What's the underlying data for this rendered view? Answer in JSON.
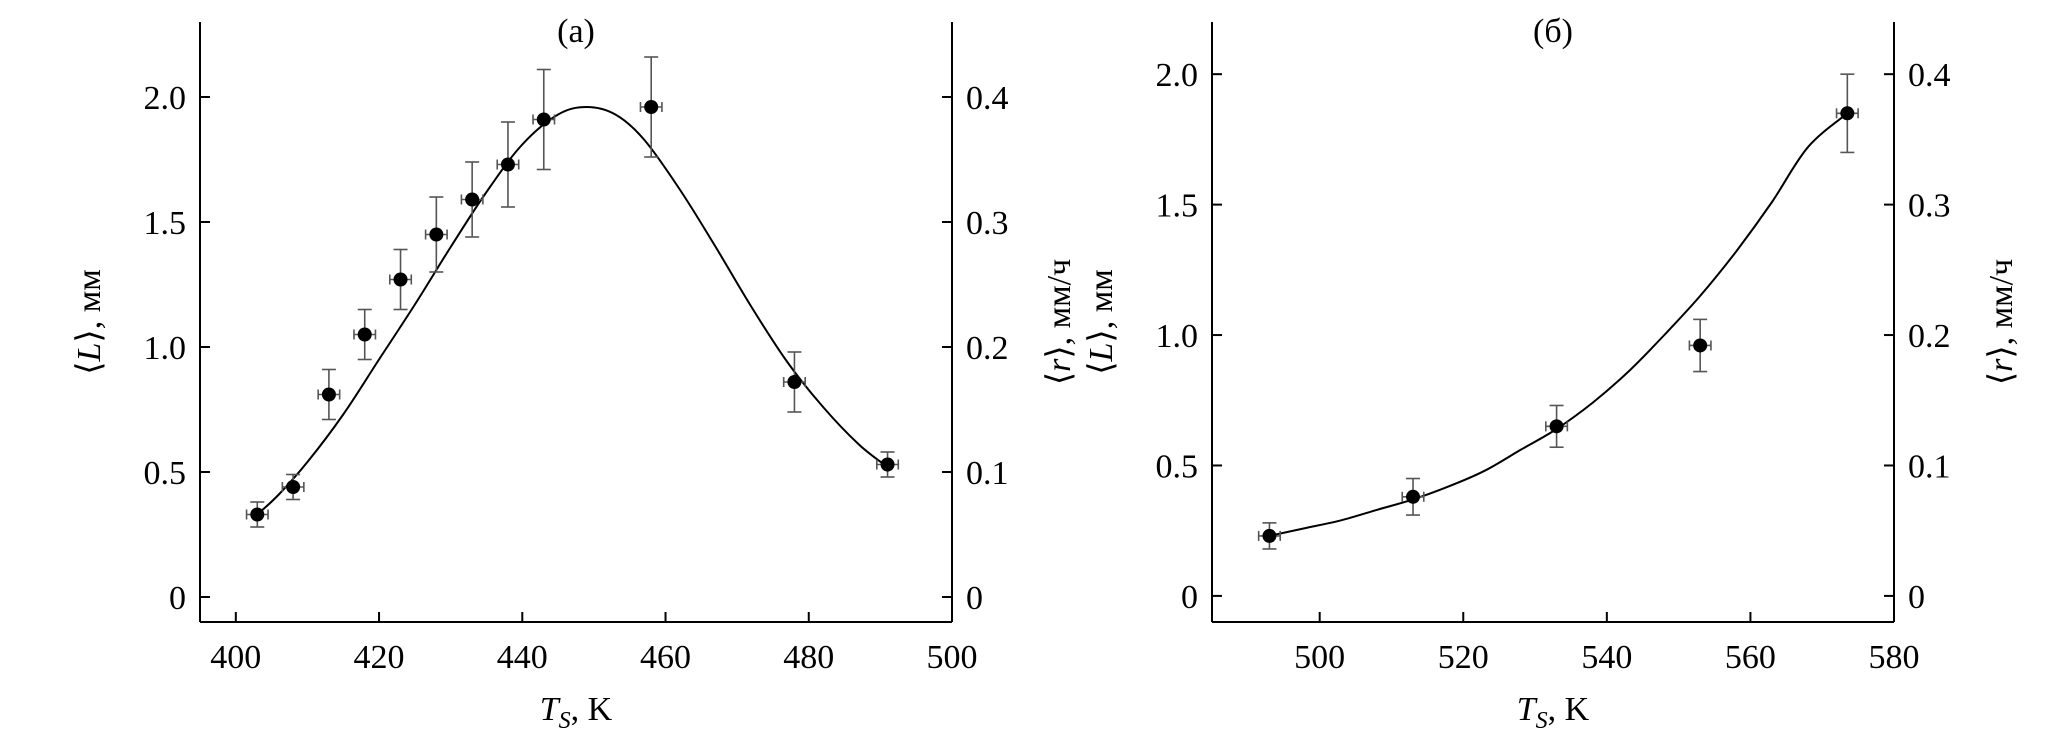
{
  "chart_data": [
    {
      "type": "scatter",
      "panel_label": "(а)",
      "xlabel": {
        "symbol": "T",
        "sub": "S",
        "unit": ", K"
      },
      "ylabel_left": {
        "open": "⟨",
        "symbol": "L",
        "close": "⟩",
        "unit": ", мм"
      },
      "ylabel_right": {
        "open": "⟨",
        "symbol": "r",
        "close": "⟩",
        "unit": ", мм/ч"
      },
      "xlim": [
        395,
        500
      ],
      "ylim_left": [
        -0.1,
        2.3
      ],
      "ylim_right": [
        -0.02,
        0.46
      ],
      "xticks": [
        400,
        420,
        440,
        460,
        480,
        500
      ],
      "xtick_labels": [
        "400",
        "420",
        "440",
        "460",
        "480",
        "500"
      ],
      "yticks_left": [
        0,
        0.5,
        1.0,
        1.5,
        2.0
      ],
      "ytick_labels_left": [
        "0",
        "0.5",
        "1.0",
        "1.5",
        "2.0"
      ],
      "yticks_right": [
        0,
        0.1,
        0.2,
        0.3,
        0.4
      ],
      "ytick_labels_right": [
        "0",
        "0.1",
        "0.2",
        "0.3",
        "0.4"
      ],
      "points": [
        {
          "x": 403,
          "y": 0.33,
          "yerr": 0.05,
          "xerr": 1.5
        },
        {
          "x": 408,
          "y": 0.44,
          "yerr": 0.05,
          "xerr": 1.5
        },
        {
          "x": 413,
          "y": 0.81,
          "yerr": 0.1,
          "xerr": 1.5
        },
        {
          "x": 418,
          "y": 1.05,
          "yerr": 0.1,
          "xerr": 1.5
        },
        {
          "x": 423,
          "y": 1.27,
          "yerr": 0.12,
          "xerr": 1.5
        },
        {
          "x": 428,
          "y": 1.45,
          "yerr": 0.15,
          "xerr": 1.5
        },
        {
          "x": 433,
          "y": 1.59,
          "yerr": 0.15,
          "xerr": 1.5
        },
        {
          "x": 438,
          "y": 1.73,
          "yerr": 0.17,
          "xerr": 1.5
        },
        {
          "x": 443,
          "y": 1.91,
          "yerr": 0.2,
          "xerr": 1.5
        },
        {
          "x": 458,
          "y": 1.96,
          "yerr": 0.2,
          "xerr": 1.5
        },
        {
          "x": 478,
          "y": 0.86,
          "yerr": 0.12,
          "xerr": 1.5
        },
        {
          "x": 491,
          "y": 0.53,
          "yerr": 0.05,
          "xerr": 1.5
        }
      ],
      "fit_curve": {
        "x": [
          403,
          406,
          410,
          415,
          420,
          425,
          430,
          435,
          440,
          445,
          449,
          453,
          457,
          462,
          467,
          472,
          477,
          482,
          487,
          491
        ],
        "y": [
          0.33,
          0.41,
          0.54,
          0.73,
          0.95,
          1.17,
          1.4,
          1.62,
          1.81,
          1.93,
          1.96,
          1.93,
          1.83,
          1.63,
          1.4,
          1.16,
          0.94,
          0.76,
          0.61,
          0.52
        ]
      }
    },
    {
      "type": "scatter",
      "panel_label": "(б)",
      "xlabel": {
        "symbol": "T",
        "sub": "S",
        "unit": ", K"
      },
      "ylabel_left": {
        "open": "⟨",
        "symbol": "L",
        "close": "⟩",
        "unit": ", мм"
      },
      "ylabel_right": {
        "open": "⟨",
        "symbol": "r",
        "close": "⟩",
        "unit": ", мм/ч"
      },
      "xlim": [
        485,
        580
      ],
      "ylim_left": [
        -0.1,
        2.2
      ],
      "ylim_right": [
        -0.02,
        0.44
      ],
      "xticks": [
        500,
        520,
        540,
        560,
        580
      ],
      "xtick_labels": [
        "500",
        "520",
        "540",
        "560",
        "580"
      ],
      "yticks_left": [
        0,
        0.5,
        1.0,
        1.5,
        2.0
      ],
      "ytick_labels_left": [
        "0",
        "0.5",
        "1.0",
        "1.5",
        "2.0"
      ],
      "yticks_right": [
        0,
        0.1,
        0.2,
        0.3,
        0.4
      ],
      "ytick_labels_right": [
        "0",
        "0.1",
        "0.2",
        "0.3",
        "0.4"
      ],
      "points": [
        {
          "x": 493,
          "y": 0.23,
          "yerr": 0.05,
          "xerr": 1.5
        },
        {
          "x": 513,
          "y": 0.38,
          "yerr": 0.07,
          "xerr": 1.5
        },
        {
          "x": 533,
          "y": 0.65,
          "yerr": 0.08,
          "xerr": 1.5
        },
        {
          "x": 553,
          "y": 0.96,
          "yerr": 0.1,
          "xerr": 1.5
        },
        {
          "x": 573.5,
          "y": 1.85,
          "yerr": 0.15,
          "xerr": 1.5
        }
      ],
      "fit_curve": {
        "x": [
          493,
          498,
          503,
          508,
          513,
          518,
          523,
          528,
          533,
          538,
          543,
          548,
          553,
          558,
          563,
          568,
          573.5
        ],
        "y": [
          0.23,
          0.26,
          0.29,
          0.33,
          0.37,
          0.42,
          0.48,
          0.56,
          0.64,
          0.74,
          0.86,
          1.0,
          1.15,
          1.32,
          1.51,
          1.72,
          1.85
        ]
      }
    }
  ]
}
